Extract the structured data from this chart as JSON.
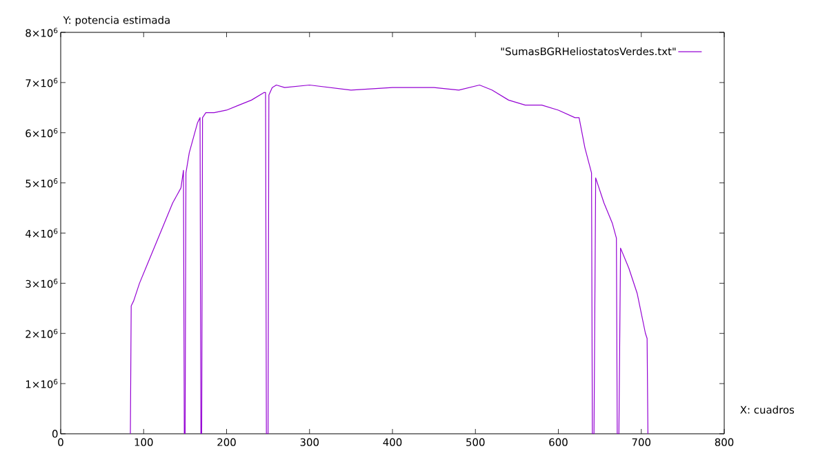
{
  "chart_data": {
    "type": "line",
    "xlabel": "X: cuadros",
    "ylabel": "Y: potencia estimada",
    "xlim": [
      0,
      800
    ],
    "xticks": [
      0,
      100,
      200,
      300,
      400,
      500,
      600,
      700,
      800
    ],
    "ylim": [
      0,
      8000000
    ],
    "yticks": [
      0,
      {
        "value": 1000000,
        "label": "1×10$^{6}$"
      },
      {
        "value": 2000000,
        "label": "2×10$^{6}$"
      },
      {
        "value": 3000000,
        "label": "3×10$^{6}$"
      },
      {
        "value": 4000000,
        "label": "4×10$^{6}$"
      },
      {
        "value": 5000000,
        "label": "5×10$^{6}$"
      },
      {
        "value": 6000000,
        "label": "6×10$^{6}$"
      },
      {
        "value": 7000000,
        "label": "7×10$^{6}$"
      },
      {
        "value": 8000000,
        "label": "8×10$^{6}$"
      }
    ],
    "legend": "top right",
    "grid": false,
    "marker": "none",
    "line_style": "solid",
    "series": [
      {
        "name": "\"SumasBGRHeliostatosVerdes.txt\"",
        "color": "#9400d3",
        "x": [
          84,
          85,
          88,
          95,
          105,
          115,
          125,
          135,
          145,
          148,
          149,
          150,
          151,
          155,
          160,
          165,
          168,
          169,
          170,
          171,
          175,
          185,
          200,
          215,
          230,
          245,
          247,
          248,
          250,
          251,
          255,
          260,
          270,
          300,
          350,
          400,
          450,
          480,
          505,
          520,
          540,
          560,
          580,
          600,
          620,
          625,
          632,
          640,
          641,
          643,
          645,
          655,
          665,
          670,
          671,
          673,
          675,
          685,
          695,
          705,
          707,
          708
        ],
        "values": [
          0,
          2550000,
          2650000,
          3000000,
          3400000,
          3800000,
          4200000,
          4600000,
          4900000,
          5250000,
          0,
          0,
          5200000,
          5600000,
          5900000,
          6200000,
          6300000,
          0,
          0,
          6300000,
          6400000,
          6400000,
          6450000,
          6550000,
          6650000,
          6800000,
          6800000,
          0,
          0,
          6750000,
          6900000,
          6950000,
          6900000,
          6950000,
          6850000,
          6900000,
          6900000,
          6850000,
          6950000,
          6850000,
          6650000,
          6550000,
          6550000,
          6450000,
          6300000,
          6300000,
          5700000,
          5200000,
          0,
          0,
          5100000,
          4600000,
          4200000,
          3900000,
          0,
          0,
          3700000,
          3300000,
          2800000,
          2000000,
          1900000,
          0
        ]
      }
    ]
  }
}
